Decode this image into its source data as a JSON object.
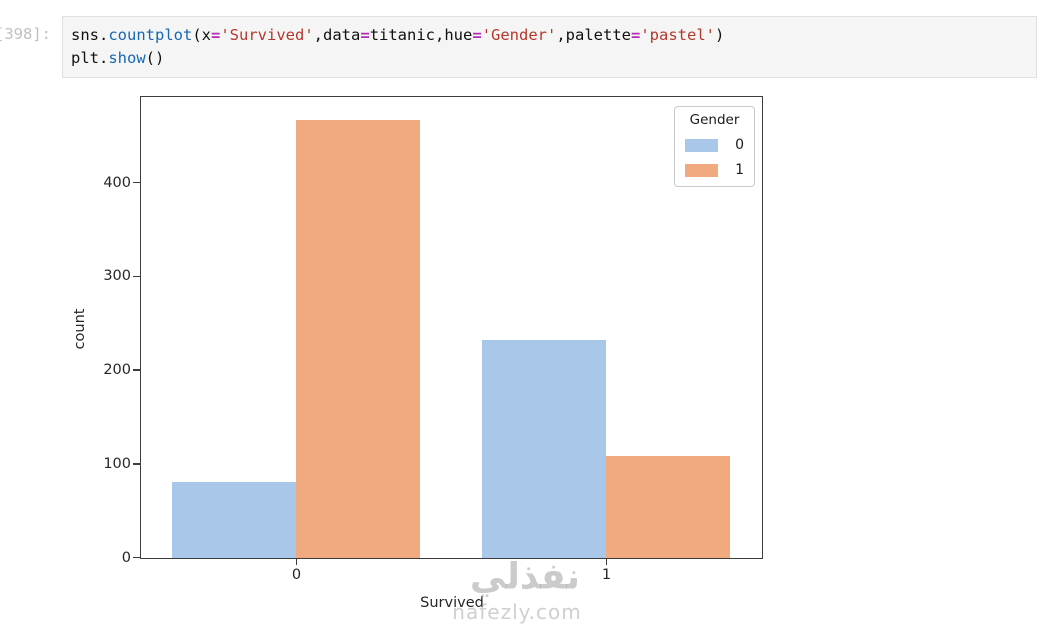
{
  "notebook": {
    "prompt": "[398]:",
    "syntax_colors": {
      "default": "#111111",
      "func": "#1668b3",
      "op": "#b52cb8",
      "str": "#b5382b"
    },
    "code_lines": [
      [
        {
          "t": "sns.",
          "c": "default"
        },
        {
          "t": "countplot",
          "c": "func"
        },
        {
          "t": "(x",
          "c": "default"
        },
        {
          "t": "=",
          "c": "op"
        },
        {
          "t": "'Survived'",
          "c": "str"
        },
        {
          "t": ",data",
          "c": "default"
        },
        {
          "t": "=",
          "c": "op"
        },
        {
          "t": "titanic,hue",
          "c": "default"
        },
        {
          "t": "=",
          "c": "op"
        },
        {
          "t": "'Gender'",
          "c": "str"
        },
        {
          "t": ",palette",
          "c": "default"
        },
        {
          "t": "=",
          "c": "op"
        },
        {
          "t": "'pastel'",
          "c": "str"
        },
        {
          "t": ")",
          "c": "default"
        }
      ],
      [
        {
          "t": "plt.",
          "c": "default"
        },
        {
          "t": "show",
          "c": "func"
        },
        {
          "t": "()",
          "c": "default"
        }
      ]
    ]
  },
  "chart_data": {
    "type": "bar",
    "title": "",
    "xlabel": "Survived",
    "ylabel": "count",
    "categories": [
      "0",
      "1"
    ],
    "series": [
      {
        "name": "0",
        "color": "#a9c7e9",
        "values": [
          81,
          233
        ]
      },
      {
        "name": "1",
        "color": "#f1aa80",
        "values": [
          468,
          109
        ]
      }
    ],
    "ylim": [
      0,
      491
    ],
    "yticks": [
      0,
      100,
      200,
      300,
      400
    ],
    "legend": {
      "title": "Gender",
      "position": "upper right"
    },
    "grid": false,
    "bar_group_fraction": 0.8
  },
  "watermark": {
    "arabic": "نفذلي",
    "domain": "nafezly.com"
  }
}
